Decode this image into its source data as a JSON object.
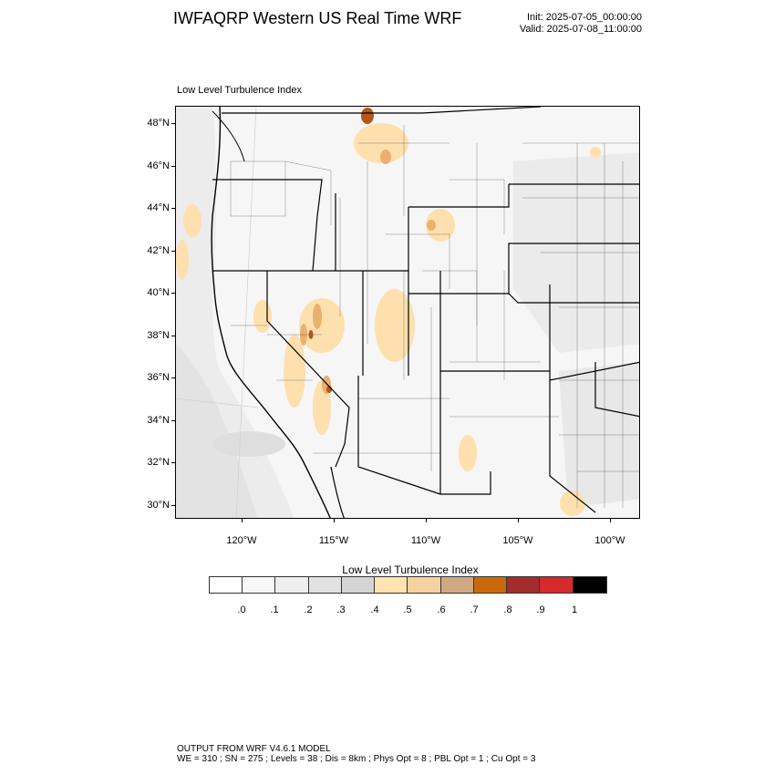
{
  "title": "IWFAQRP Western US Real Time WRF",
  "init_time": "Init: 2025-07-05_00:00:00",
  "valid_time": "Valid: 2025-07-08_11:00:00",
  "panel_label": "Low Level Turbulence Index",
  "map": {
    "lat_labels": [
      "48°N",
      "46°N",
      "44°N",
      "42°N",
      "40°N",
      "38°N",
      "36°N",
      "34°N",
      "32°N",
      "30°N"
    ],
    "lon_labels": [
      "120°W",
      "115°W",
      "110°W",
      "105°W",
      "100°W"
    ]
  },
  "colorbar": {
    "title": "Low Level Turbulence Index",
    "colors": [
      "#ffffff",
      "#f7f7f7",
      "#eeeeee",
      "#e2e2e2",
      "#d4d4d4",
      "#fde4b0",
      "#f6d2a0",
      "#cfa984",
      "#c96a0a",
      "#a42c2c",
      "#d42a2a",
      "#000000"
    ],
    "labels": [
      ".0",
      ".1",
      ".2",
      ".3",
      ".4",
      ".5",
      ".6",
      ".7",
      ".8",
      ".9",
      "1"
    ]
  },
  "footer": {
    "line1": "OUTPUT FROM WRF V4.6.1 MODEL",
    "line2": "WE = 310 ; SN = 275 ; Levels = 38 ; Dis = 8km ; Phys Opt = 8 ; PBL Opt = 1 ; Cu Opt = 3"
  }
}
